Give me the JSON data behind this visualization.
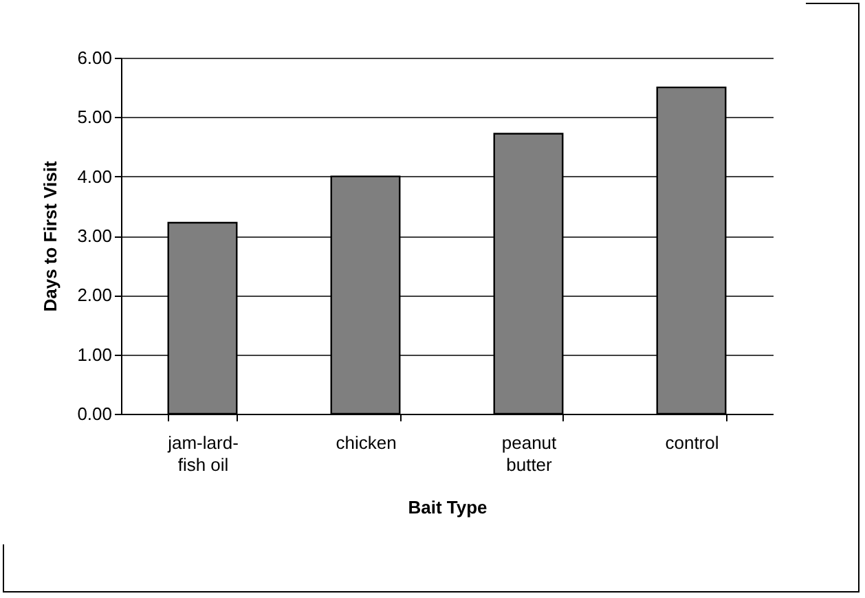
{
  "chart_data": {
    "type": "bar",
    "xlabel": "Bait Type",
    "ylabel": "Days to First Visit",
    "categories": [
      "jam-lard-fish oil",
      "chicken",
      "peanut butter",
      "control"
    ],
    "values": [
      3.22,
      4.0,
      4.72,
      5.5
    ],
    "color": "#7f7f7f",
    "ylim": [
      0,
      6
    ],
    "yticks": [
      {
        "value": 0,
        "label": "0.00"
      },
      {
        "value": 1,
        "label": "1.00"
      },
      {
        "value": 2,
        "label": "2.00"
      },
      {
        "value": 3,
        "label": "3.00"
      },
      {
        "value": 4,
        "label": "4.00"
      },
      {
        "value": 5,
        "label": "5.00"
      },
      {
        "value": 6,
        "label": "6.00"
      }
    ],
    "grid": "y"
  }
}
